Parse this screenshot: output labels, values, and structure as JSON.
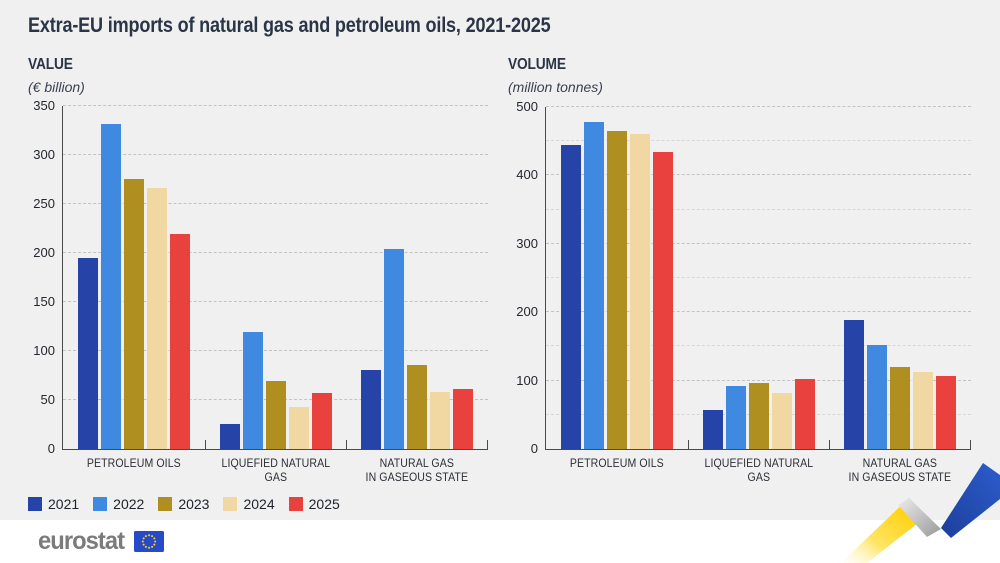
{
  "title": "Extra-EU imports of natural gas and petroleum oils, 2021-2025",
  "legend": {
    "items": [
      {
        "label": "2021",
        "color": "#2644a7"
      },
      {
        "label": "2022",
        "color": "#3f8ae0"
      },
      {
        "label": "2023",
        "color": "#af8f1f"
      },
      {
        "label": "2024",
        "color": "#f1d7a1"
      },
      {
        "label": "2025",
        "color": "#e8413e"
      }
    ]
  },
  "footer": {
    "logo_text": "eurostat",
    "flag_icon": "eu-flag",
    "ribbon_icon": "eu-ribbon",
    "ribbon_colors": {
      "yellow": "#ffd51e",
      "blue": "#2450b8",
      "fold_gray": "#9a9a9a"
    }
  },
  "chart_data": [
    {
      "type": "bar",
      "name": "value",
      "title": "VALUE",
      "subtitle": "(€ billion)",
      "categories": [
        "PETROLEUM OILS",
        "LIQUEFIED NATURAL GAS",
        "NATURAL GAS\nIN GASEOUS STATE"
      ],
      "series": [
        {
          "name": "2021",
          "color": "#2644a7",
          "values": [
            195,
            26,
            81
          ]
        },
        {
          "name": "2022",
          "color": "#3f8ae0",
          "values": [
            332,
            119,
            204
          ]
        },
        {
          "name": "2023",
          "color": "#af8f1f",
          "values": [
            276,
            69,
            86
          ]
        },
        {
          "name": "2024",
          "color": "#f1d7a1",
          "values": [
            266,
            43,
            58
          ]
        },
        {
          "name": "2025",
          "color": "#e8413e",
          "values": [
            219,
            57,
            61
          ]
        }
      ],
      "ylim": [
        0,
        350
      ],
      "gridline_values": [
        50,
        100,
        150,
        200,
        250,
        300,
        350
      ],
      "ytick_labels": [
        {
          "value": 0,
          "text": "0"
        },
        {
          "value": 50,
          "text": "50"
        },
        {
          "value": 100,
          "text": "100"
        },
        {
          "value": 150,
          "text": "150"
        },
        {
          "value": 200,
          "text": "200"
        },
        {
          "value": 250,
          "text": "250"
        },
        {
          "value": 300,
          "text": "300"
        },
        {
          "value": 350,
          "text": "350"
        }
      ],
      "grid": "dashed",
      "legend_position": "bottom"
    },
    {
      "type": "bar",
      "name": "volume",
      "title": "VOLUME",
      "subtitle": "(million tonnes)",
      "categories": [
        "PETROLEUM OILS",
        "LIQUEFIED NATURAL GAS",
        "NATURAL GAS\nIN GASEOUS STATE"
      ],
      "series": [
        {
          "name": "2021",
          "color": "#2644a7",
          "values": [
            445,
            57,
            188
          ]
        },
        {
          "name": "2022",
          "color": "#3f8ae0",
          "values": [
            478,
            92,
            152
          ]
        },
        {
          "name": "2023",
          "color": "#af8f1f",
          "values": [
            465,
            96,
            120
          ]
        },
        {
          "name": "2024",
          "color": "#f1d7a1",
          "values": [
            461,
            82,
            113
          ]
        },
        {
          "name": "2025",
          "color": "#e8413e",
          "values": [
            434,
            102,
            107
          ]
        }
      ],
      "ylim": [
        0,
        500
      ],
      "gridline_values": [
        50,
        100,
        150,
        200,
        250,
        300,
        350,
        400,
        450,
        500
      ],
      "ytick_labels": [
        {
          "value": 0,
          "text": "0"
        },
        {
          "value": 100,
          "text": "100"
        },
        {
          "value": 200,
          "text": "200"
        },
        {
          "value": 300,
          "text": "300"
        },
        {
          "value": 400,
          "text": "400"
        },
        {
          "value": 500,
          "text": "500"
        }
      ],
      "grid": "dashed",
      "legend_position": "bottom"
    }
  ]
}
